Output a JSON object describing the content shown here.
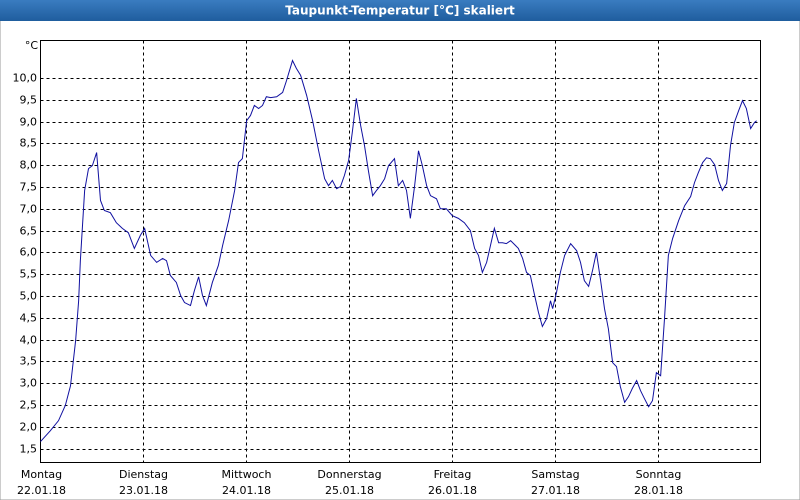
{
  "chart_data": {
    "type": "line",
    "title": "Taupunkt-Temperatur [°C] skaliert",
    "y_unit": "°C",
    "color": "#1010a0",
    "grid": true,
    "xlim": [
      0,
      168
    ],
    "ylim": [
      1.18,
      10.86
    ],
    "xticks": [
      {
        "value": 0,
        "label": "Montag"
      },
      {
        "value": 24,
        "label": "Dienstag"
      },
      {
        "value": 48,
        "label": "Mittwoch"
      },
      {
        "value": 72,
        "label": "Donnerstag"
      },
      {
        "value": 96,
        "label": "Freitag"
      },
      {
        "value": 120,
        "label": "Samstag"
      },
      {
        "value": 144,
        "label": "Sonntag"
      }
    ],
    "xtick_dates": [
      "22.01.18",
      "23.01.18",
      "24.01.18",
      "25.01.18",
      "26.01.18",
      "27.01.18",
      "28.01.18"
    ],
    "yticks": [
      {
        "value": 1.5,
        "label": "1,5"
      },
      {
        "value": 2,
        "label": "2,0"
      },
      {
        "value": 2.5,
        "label": "2,5"
      },
      {
        "value": 3,
        "label": "3,0"
      },
      {
        "value": 3.5,
        "label": "3,5"
      },
      {
        "value": 4,
        "label": "4,0"
      },
      {
        "value": 4.5,
        "label": "4,5"
      },
      {
        "value": 5,
        "label": "5,0"
      },
      {
        "value": 5.5,
        "label": "5,5"
      },
      {
        "value": 6,
        "label": "6,0"
      },
      {
        "value": 6.5,
        "label": "6,5"
      },
      {
        "value": 7,
        "label": "7,0"
      },
      {
        "value": 7.5,
        "label": "7,5"
      },
      {
        "value": 8,
        "label": "8,0"
      },
      {
        "value": 8.5,
        "label": "8,5"
      },
      {
        "value": 9,
        "label": "9,0"
      },
      {
        "value": 9.5,
        "label": "9,5"
      },
      {
        "value": 10,
        "label": "10,0"
      }
    ],
    "x": [
      0,
      2.3,
      4.2,
      5.8,
      7.0,
      8.2,
      8.9,
      9.3,
      10.3,
      11.2,
      12.1,
      13.1,
      14.0,
      14.9,
      16.3,
      17.7,
      19.1,
      20.5,
      21.9,
      23.3,
      24.3,
      25.7,
      27.1,
      28.5,
      29.4,
      30.3,
      31.7,
      32.7,
      33.6,
      35.0,
      35.9,
      36.9,
      37.8,
      38.7,
      40.1,
      41.5,
      42.5,
      43.9,
      45.3,
      46.2,
      47.1,
      48.1,
      49.0,
      49.9,
      50.9,
      51.8,
      52.7,
      53.7,
      55.1,
      56.5,
      57.4,
      58.8,
      59.7,
      60.7,
      62.1,
      63.5,
      64.9,
      66.3,
      67.2,
      68.1,
      69.1,
      70.0,
      70.9,
      71.9,
      72.8,
      73.7,
      74.7,
      75.6,
      76.5,
      77.5,
      78.4,
      79.3,
      80.3,
      81.2,
      82.6,
      83.5,
      84.5,
      85.4,
      86.3,
      87.3,
      88.2,
      89.1,
      90.1,
      91.0,
      92.4,
      93.3,
      94.7,
      96.1,
      97.5,
      98.9,
      100.3,
      101.3,
      102.2,
      103.1,
      104.1,
      105.0,
      105.9,
      106.9,
      107.8,
      108.7,
      109.7,
      110.6,
      111.5,
      112.5,
      113.4,
      114.3,
      115.3,
      116.2,
      117.1,
      118.1,
      119.0,
      119.5,
      120.4,
      121.3,
      122.3,
      123.7,
      125.1,
      126.0,
      126.9,
      127.9,
      128.8,
      129.7,
      130.7,
      131.6,
      132.5,
      133.5,
      134.4,
      135.3,
      136.3,
      137.2,
      138.1,
      139.1,
      140.0,
      140.9,
      141.9,
      142.8,
      143.7,
      144.7,
      145.6,
      146.5,
      147.5,
      148.9,
      150.3,
      151.7,
      152.6,
      153.5,
      154.5,
      155.4,
      156.3,
      157.3,
      158.2,
      159.1,
      160.1,
      161.0,
      161.9,
      162.9,
      163.8,
      164.7,
      165.7,
      166.6,
      167.1
    ],
    "values": [
      1.66,
      1.91,
      2.14,
      2.49,
      2.94,
      3.98,
      4.89,
      5.81,
      7.42,
      7.92,
      7.99,
      8.29,
      7.19,
      6.96,
      6.91,
      6.68,
      6.55,
      6.45,
      6.09,
      6.39,
      6.55,
      5.93,
      5.77,
      5.86,
      5.81,
      5.47,
      5.31,
      5.01,
      4.85,
      4.78,
      5.12,
      5.44,
      5.01,
      4.78,
      5.31,
      5.7,
      6.16,
      6.73,
      7.42,
      8.06,
      8.15,
      9.02,
      9.14,
      9.37,
      9.3,
      9.37,
      9.57,
      9.55,
      9.57,
      9.67,
      9.94,
      10.4,
      10.22,
      10.06,
      9.6,
      9.02,
      8.33,
      7.69,
      7.53,
      7.65,
      7.46,
      7.51,
      7.76,
      8.11,
      8.79,
      9.53,
      8.91,
      8.45,
      7.88,
      7.3,
      7.42,
      7.53,
      7.69,
      7.99,
      8.15,
      7.53,
      7.65,
      7.42,
      6.78,
      7.53,
      8.33,
      7.99,
      7.53,
      7.3,
      7.23,
      7.0,
      7.0,
      6.84,
      6.78,
      6.68,
      6.5,
      6.09,
      5.93,
      5.54,
      5.77,
      6.16,
      6.55,
      6.22,
      6.22,
      6.2,
      6.27,
      6.18,
      6.09,
      5.86,
      5.54,
      5.47,
      5.01,
      4.62,
      4.3,
      4.48,
      4.89,
      4.71,
      5.08,
      5.54,
      5.93,
      6.2,
      6.04,
      5.77,
      5.35,
      5.22,
      5.58,
      6.0,
      5.35,
      4.71,
      4.25,
      3.47,
      3.38,
      2.92,
      2.56,
      2.69,
      2.88,
      3.06,
      2.83,
      2.65,
      2.46,
      2.6,
      3.24,
      3.17,
      4.48,
      5.93,
      6.32,
      6.73,
      7.07,
      7.28,
      7.6,
      7.83,
      8.06,
      8.17,
      8.15,
      8.01,
      7.65,
      7.42,
      7.58,
      8.45,
      8.98,
      9.25,
      9.48,
      9.3,
      8.84,
      8.98,
      9.02
    ]
  }
}
